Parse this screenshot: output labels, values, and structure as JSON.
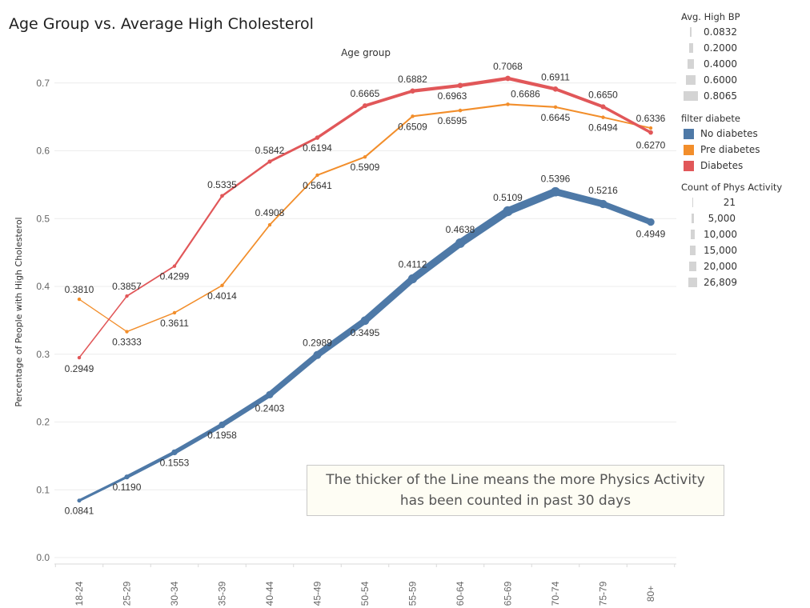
{
  "title": "Age Group vs. Average High Cholesterol",
  "annotation": {
    "line1": "The thicker of the Line means the more Physics Activity",
    "line2": "has been counted in past 30 days"
  },
  "legends": {
    "bp": {
      "title": "Avg. High BP",
      "items": [
        "0.0832",
        "0.2000",
        "0.4000",
        "0.6000",
        "0.8065"
      ]
    },
    "diabetes": {
      "title": "filter diabete",
      "items": [
        {
          "label": "No diabetes",
          "color": "#4e79a7"
        },
        {
          "label": "Pre diabetes",
          "color": "#f28e2b"
        },
        {
          "label": "Diabetes",
          "color": "#e15759"
        }
      ]
    },
    "activity": {
      "title": "Count of Phys Activity",
      "items": [
        "21",
        "5,000",
        "10,000",
        "15,000",
        "20,000",
        "26,809"
      ]
    }
  },
  "chart_data": {
    "type": "line",
    "title": "Age Group vs. Average High Cholesterol",
    "xlabel": "Age group",
    "ylabel": "Percentage of People with High Cholesterol",
    "ylim": [
      0,
      0.72
    ],
    "yticks": [
      "0.0",
      "0.1",
      "0.2",
      "0.3",
      "0.4",
      "0.5",
      "0.6",
      "0.7"
    ],
    "categories": [
      "18-24",
      "25-29",
      "30-34",
      "35-39",
      "40-44",
      "45-49",
      "50-54",
      "55-59",
      "60-64",
      "65-69",
      "70-74",
      "75-79",
      "80+"
    ],
    "series": [
      {
        "name": "No diabetes",
        "color": "#4e79a7",
        "values": [
          0.0841,
          0.119,
          0.1553,
          0.1958,
          0.2403,
          0.2989,
          0.3495,
          0.4112,
          0.4638,
          0.5109,
          0.5396,
          0.5216,
          0.4949
        ],
        "labels": [
          "0.0841",
          "0.1190",
          "0.1553",
          "0.1958",
          "0.2403",
          "0.2989",
          "0.3495",
          "0.4112",
          "0.4638",
          "0.5109",
          "0.5396",
          "0.5216",
          "0.4949"
        ],
        "phys_activity_count": [
          900,
          2500,
          5200,
          8000,
          11500,
          15000,
          17500,
          21000,
          24500,
          26809,
          23000,
          15500,
          12000
        ]
      },
      {
        "name": "Pre diabetes",
        "color": "#f28e2b",
        "values": [
          0.381,
          0.3333,
          0.3611,
          0.4014,
          0.4908,
          0.5641,
          0.5909,
          0.6509,
          0.6595,
          0.6686,
          0.6645,
          0.6494,
          0.6336
        ],
        "labels": [
          "0.3810",
          "0.3333",
          "0.3611",
          "0.4014",
          "0.4908",
          "0.5641",
          "0.5909",
          "0.6509",
          "0.6595",
          "0.6686",
          "0.6645",
          "0.6494",
          "0.6336"
        ],
        "phys_activity_count": [
          21,
          40,
          80,
          120,
          180,
          260,
          330,
          400,
          450,
          470,
          400,
          300,
          250
        ]
      },
      {
        "name": "Diabetes",
        "color": "#e15759",
        "values": [
          0.2949,
          0.3857,
          0.4299,
          0.5335,
          0.5842,
          0.6194,
          0.6665,
          0.6882,
          0.6963,
          0.7068,
          0.6911,
          0.665,
          0.627
        ],
        "labels": [
          "0.2949",
          "0.3857",
          "0.4299",
          "0.5335",
          "0.5842",
          "0.6194",
          "0.6665",
          "0.6882",
          "0.6963",
          "0.7068",
          "0.6911",
          "0.6650",
          "0.6270"
        ],
        "phys_activity_count": [
          60,
          150,
          300,
          600,
          1000,
          1500,
          2200,
          3000,
          3600,
          3800,
          3300,
          2400,
          1800
        ]
      }
    ]
  }
}
